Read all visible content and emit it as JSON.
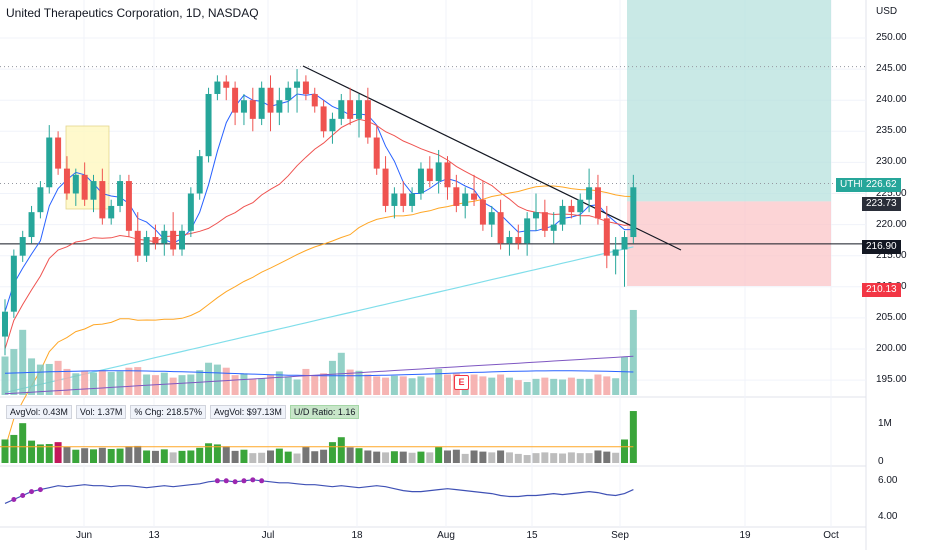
{
  "header": {
    "title": "United Therapeutics Corporation, 1D, NASDAQ"
  },
  "indicator_legend": {
    "avg_vol": "AvgVol: 0.43M",
    "vol": "Vol: 1.37M",
    "pct_chg": "% Chg: 218.57%",
    "avg_dollar_vol": "AvgVol: $97.13M",
    "ud_ratio": "U/D Ratio: 1.16"
  },
  "price_axis": {
    "currency": "USD",
    "ticks": [
      "250.00",
      "245.00",
      "240.00",
      "235.00",
      "230.00",
      "225.00",
      "220.00",
      "215.00",
      "210.00",
      "205.00",
      "200.00",
      "195.00"
    ]
  },
  "volume_axis": {
    "ticks": [
      "1M",
      "0"
    ]
  },
  "rs_axis": {
    "ticks": [
      "6.00",
      "4.00"
    ]
  },
  "price_tags": {
    "symbol": "UTHR",
    "last": "226.62",
    "target": "223.73",
    "crosshair": "216.90",
    "stop": "210.13"
  },
  "x_axis": {
    "labels": [
      "Jun",
      "13",
      "Jul",
      "18",
      "Aug",
      "15",
      "Sep",
      "19",
      "Oct"
    ]
  },
  "earnings_marker": "E",
  "colors": {
    "up": "#26a69a",
    "down": "#ef5350",
    "target_zone": "#b2dfdb",
    "stop_zone": "#fbc2c4",
    "up_volume": "#81c9bd",
    "down_volume": "#f4a7a6",
    "buy_volume": "#3aa53a",
    "sell_volume": "#c2185b",
    "neutral_volume": "#757575",
    "sma_short": "#2962ff",
    "sma_mid": "#ef5350",
    "sma_long": "#ffa726",
    "sma_200": "#80deea",
    "vol_avg": "#2962ff",
    "vol_long_avg": "#7e57c2"
  },
  "chart_data": {
    "type": "candlestick",
    "symbol": "UTHR",
    "timeframe": "1D",
    "exchange": "NASDAQ",
    "ylim": [
      193,
      256
    ],
    "x_labels": [
      "Jun",
      "13",
      "Jul",
      "18",
      "Aug",
      "15",
      "Sep",
      "19",
      "Oct"
    ],
    "ohlc": [
      [
        202,
        208,
        199,
        206
      ],
      [
        206,
        216,
        205,
        215
      ],
      [
        215,
        219,
        214,
        218
      ],
      [
        218,
        223,
        217,
        222
      ],
      [
        222,
        227,
        221,
        226
      ],
      [
        226,
        236,
        225,
        234
      ],
      [
        234,
        235,
        228,
        229
      ],
      [
        229,
        231,
        224,
        225
      ],
      [
        225,
        229,
        223,
        228
      ],
      [
        228,
        230,
        223,
        224
      ],
      [
        224,
        228,
        222,
        227
      ],
      [
        227,
        229,
        220,
        221
      ],
      [
        221,
        224,
        220,
        223
      ],
      [
        223,
        228,
        222,
        227
      ],
      [
        227,
        228,
        218,
        219
      ],
      [
        219,
        222,
        214,
        215
      ],
      [
        215,
        219,
        214,
        218
      ],
      [
        218,
        220,
        216,
        217
      ],
      [
        217,
        220,
        215,
        219
      ],
      [
        219,
        222,
        215,
        216
      ],
      [
        216,
        220,
        215,
        219
      ],
      [
        219,
        226,
        218,
        225
      ],
      [
        225,
        232,
        224,
        231
      ],
      [
        231,
        242,
        230,
        241
      ],
      [
        241,
        244,
        240,
        243
      ],
      [
        243,
        244,
        240,
        242
      ],
      [
        242,
        243,
        236,
        238
      ],
      [
        238,
        241,
        236,
        240
      ],
      [
        240,
        242,
        235,
        237
      ],
      [
        237,
        243,
        236,
        242
      ],
      [
        242,
        244,
        235,
        238
      ],
      [
        238,
        242,
        236,
        240
      ],
      [
        240,
        243,
        238,
        242
      ],
      [
        242,
        245,
        238,
        243
      ],
      [
        243,
        244,
        240,
        241
      ],
      [
        241,
        242,
        238,
        239
      ],
      [
        239,
        240,
        234,
        235
      ],
      [
        235,
        238,
        233,
        237
      ],
      [
        237,
        241,
        236,
        240
      ],
      [
        240,
        242,
        236,
        237
      ],
      [
        237,
        241,
        234,
        240
      ],
      [
        240,
        242,
        233,
        234
      ],
      [
        234,
        236,
        228,
        229
      ],
      [
        229,
        231,
        222,
        223
      ],
      [
        223,
        226,
        221,
        225
      ],
      [
        225,
        227,
        222,
        223
      ],
      [
        223,
        226,
        222,
        225
      ],
      [
        225,
        230,
        224,
        229
      ],
      [
        229,
        231,
        226,
        227
      ],
      [
        227,
        232,
        225,
        230
      ],
      [
        230,
        231,
        224,
        226
      ],
      [
        226,
        228,
        222,
        223
      ],
      [
        223,
        226,
        221,
        225
      ],
      [
        225,
        228,
        223,
        224
      ],
      [
        224,
        227,
        219,
        220
      ],
      [
        220,
        223,
        218,
        222
      ],
      [
        222,
        224,
        216,
        217
      ],
      [
        217,
        219,
        215,
        218
      ],
      [
        218,
        220,
        216,
        217
      ],
      [
        217,
        222,
        215,
        221
      ],
      [
        221,
        225,
        219,
        222
      ],
      [
        222,
        224,
        218,
        219
      ],
      [
        219,
        222,
        217,
        220
      ],
      [
        220,
        224,
        219,
        223
      ],
      [
        223,
        224,
        221,
        222
      ],
      [
        222,
        225,
        220,
        224
      ],
      [
        224,
        229,
        222,
        226
      ],
      [
        226,
        228,
        220,
        221
      ],
      [
        221,
        223,
        213,
        215
      ],
      [
        215,
        218,
        212,
        216
      ],
      [
        216,
        219,
        210,
        218
      ],
      [
        218,
        228,
        217,
        226
      ]
    ],
    "volume": [
      0.62,
      0.74,
      1.05,
      0.59,
      0.49,
      0.5,
      0.55,
      0.42,
      0.35,
      0.39,
      0.36,
      0.4,
      0.37,
      0.38,
      0.44,
      0.45,
      0.33,
      0.32,
      0.36,
      0.28,
      0.32,
      0.33,
      0.4,
      0.52,
      0.49,
      0.44,
      0.32,
      0.35,
      0.26,
      0.27,
      0.33,
      0.38,
      0.3,
      0.25,
      0.42,
      0.31,
      0.35,
      0.55,
      0.68,
      0.41,
      0.39,
      0.33,
      0.3,
      0.28,
      0.31,
      0.3,
      0.27,
      0.3,
      0.28,
      0.42,
      0.33,
      0.35,
      0.24,
      0.33,
      0.3,
      0.28,
      0.33,
      0.28,
      0.24,
      0.21,
      0.26,
      0.28,
      0.26,
      0.25,
      0.28,
      0.26,
      0.26,
      0.33,
      0.3,
      0.27,
      0.62,
      1.37
    ],
    "rs_line": [
      4.9,
      5.1,
      5.3,
      5.5,
      5.6,
      5.7,
      5.8,
      5.75,
      5.8,
      5.85,
      5.8,
      5.8,
      5.75,
      5.8,
      5.8,
      5.75,
      5.7,
      5.75,
      5.8,
      5.75,
      5.8,
      5.85,
      5.9,
      6.0,
      6.05,
      6.05,
      6.0,
      6.05,
      6.1,
      6.05,
      6.0,
      5.95,
      5.95,
      5.9,
      5.85,
      5.85,
      5.8,
      5.75,
      5.8,
      5.75,
      5.7,
      5.75,
      5.8,
      5.75,
      5.65,
      5.55,
      5.5,
      5.5,
      5.55,
      5.6,
      5.65,
      5.6,
      5.55,
      5.5,
      5.45,
      5.4,
      5.3,
      5.25,
      5.25,
      5.3,
      5.3,
      5.35,
      5.4,
      5.35,
      5.4,
      5.45,
      5.5,
      5.45,
      5.35,
      5.3,
      5.4,
      5.6
    ],
    "levels": {
      "stop": 210.13,
      "target_entry": 223.73,
      "horizontal_line": 216.9,
      "last": 226.62
    },
    "rs_ylim": [
      3.8,
      6.6
    ],
    "volume_ylim": [
      0,
      1.45
    ]
  }
}
